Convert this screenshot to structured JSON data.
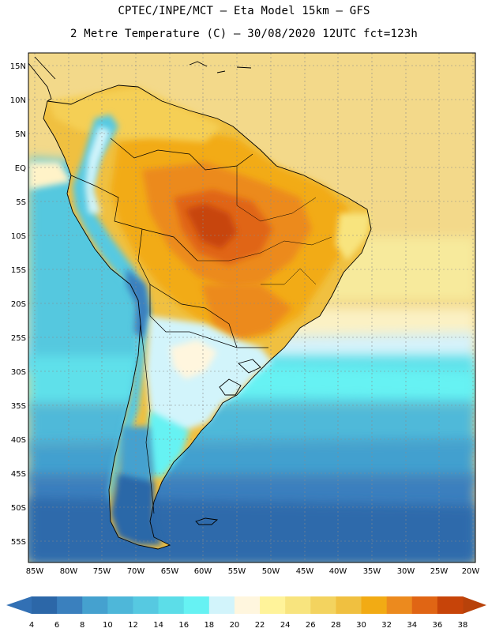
{
  "header": {
    "line1": "CPTEC/INPE/MCT –  Eta Model 15km – GFS",
    "line2": "2 Metre Temperature (C) – 30/08/2020 12UTC fct=123h"
  },
  "axes": {
    "lat_labels": [
      "15N",
      "10N",
      "5N",
      "EQ",
      "5S",
      "10S",
      "15S",
      "20S",
      "25S",
      "30S",
      "35S",
      "40S",
      "45S",
      "50S",
      "55S"
    ],
    "lon_labels": [
      "85W",
      "80W",
      "75W",
      "70W",
      "65W",
      "60W",
      "55W",
      "50W",
      "45W",
      "40W",
      "35W",
      "30W",
      "25W",
      "20W"
    ]
  },
  "colorbar": {
    "labels": [
      "4",
      "6",
      "8",
      "10",
      "12",
      "14",
      "16",
      "18",
      "20",
      "22",
      "24",
      "26",
      "28",
      "30",
      "32",
      "34",
      "36",
      "38"
    ],
    "colors": [
      "#2c67a8",
      "#3a80be",
      "#45a1cf",
      "#4eb7d9",
      "#56c9e1",
      "#5cdde8",
      "#66f2f3",
      "#d2f4fb",
      "#fff6de",
      "#fff39a",
      "#f8e47e",
      "#f3d35f",
      "#f0c040",
      "#f2ab14",
      "#ec8a1e",
      "#e06514",
      "#c74409"
    ],
    "low_color": "#3270b4",
    "high_color": "#b8420a"
  }
}
